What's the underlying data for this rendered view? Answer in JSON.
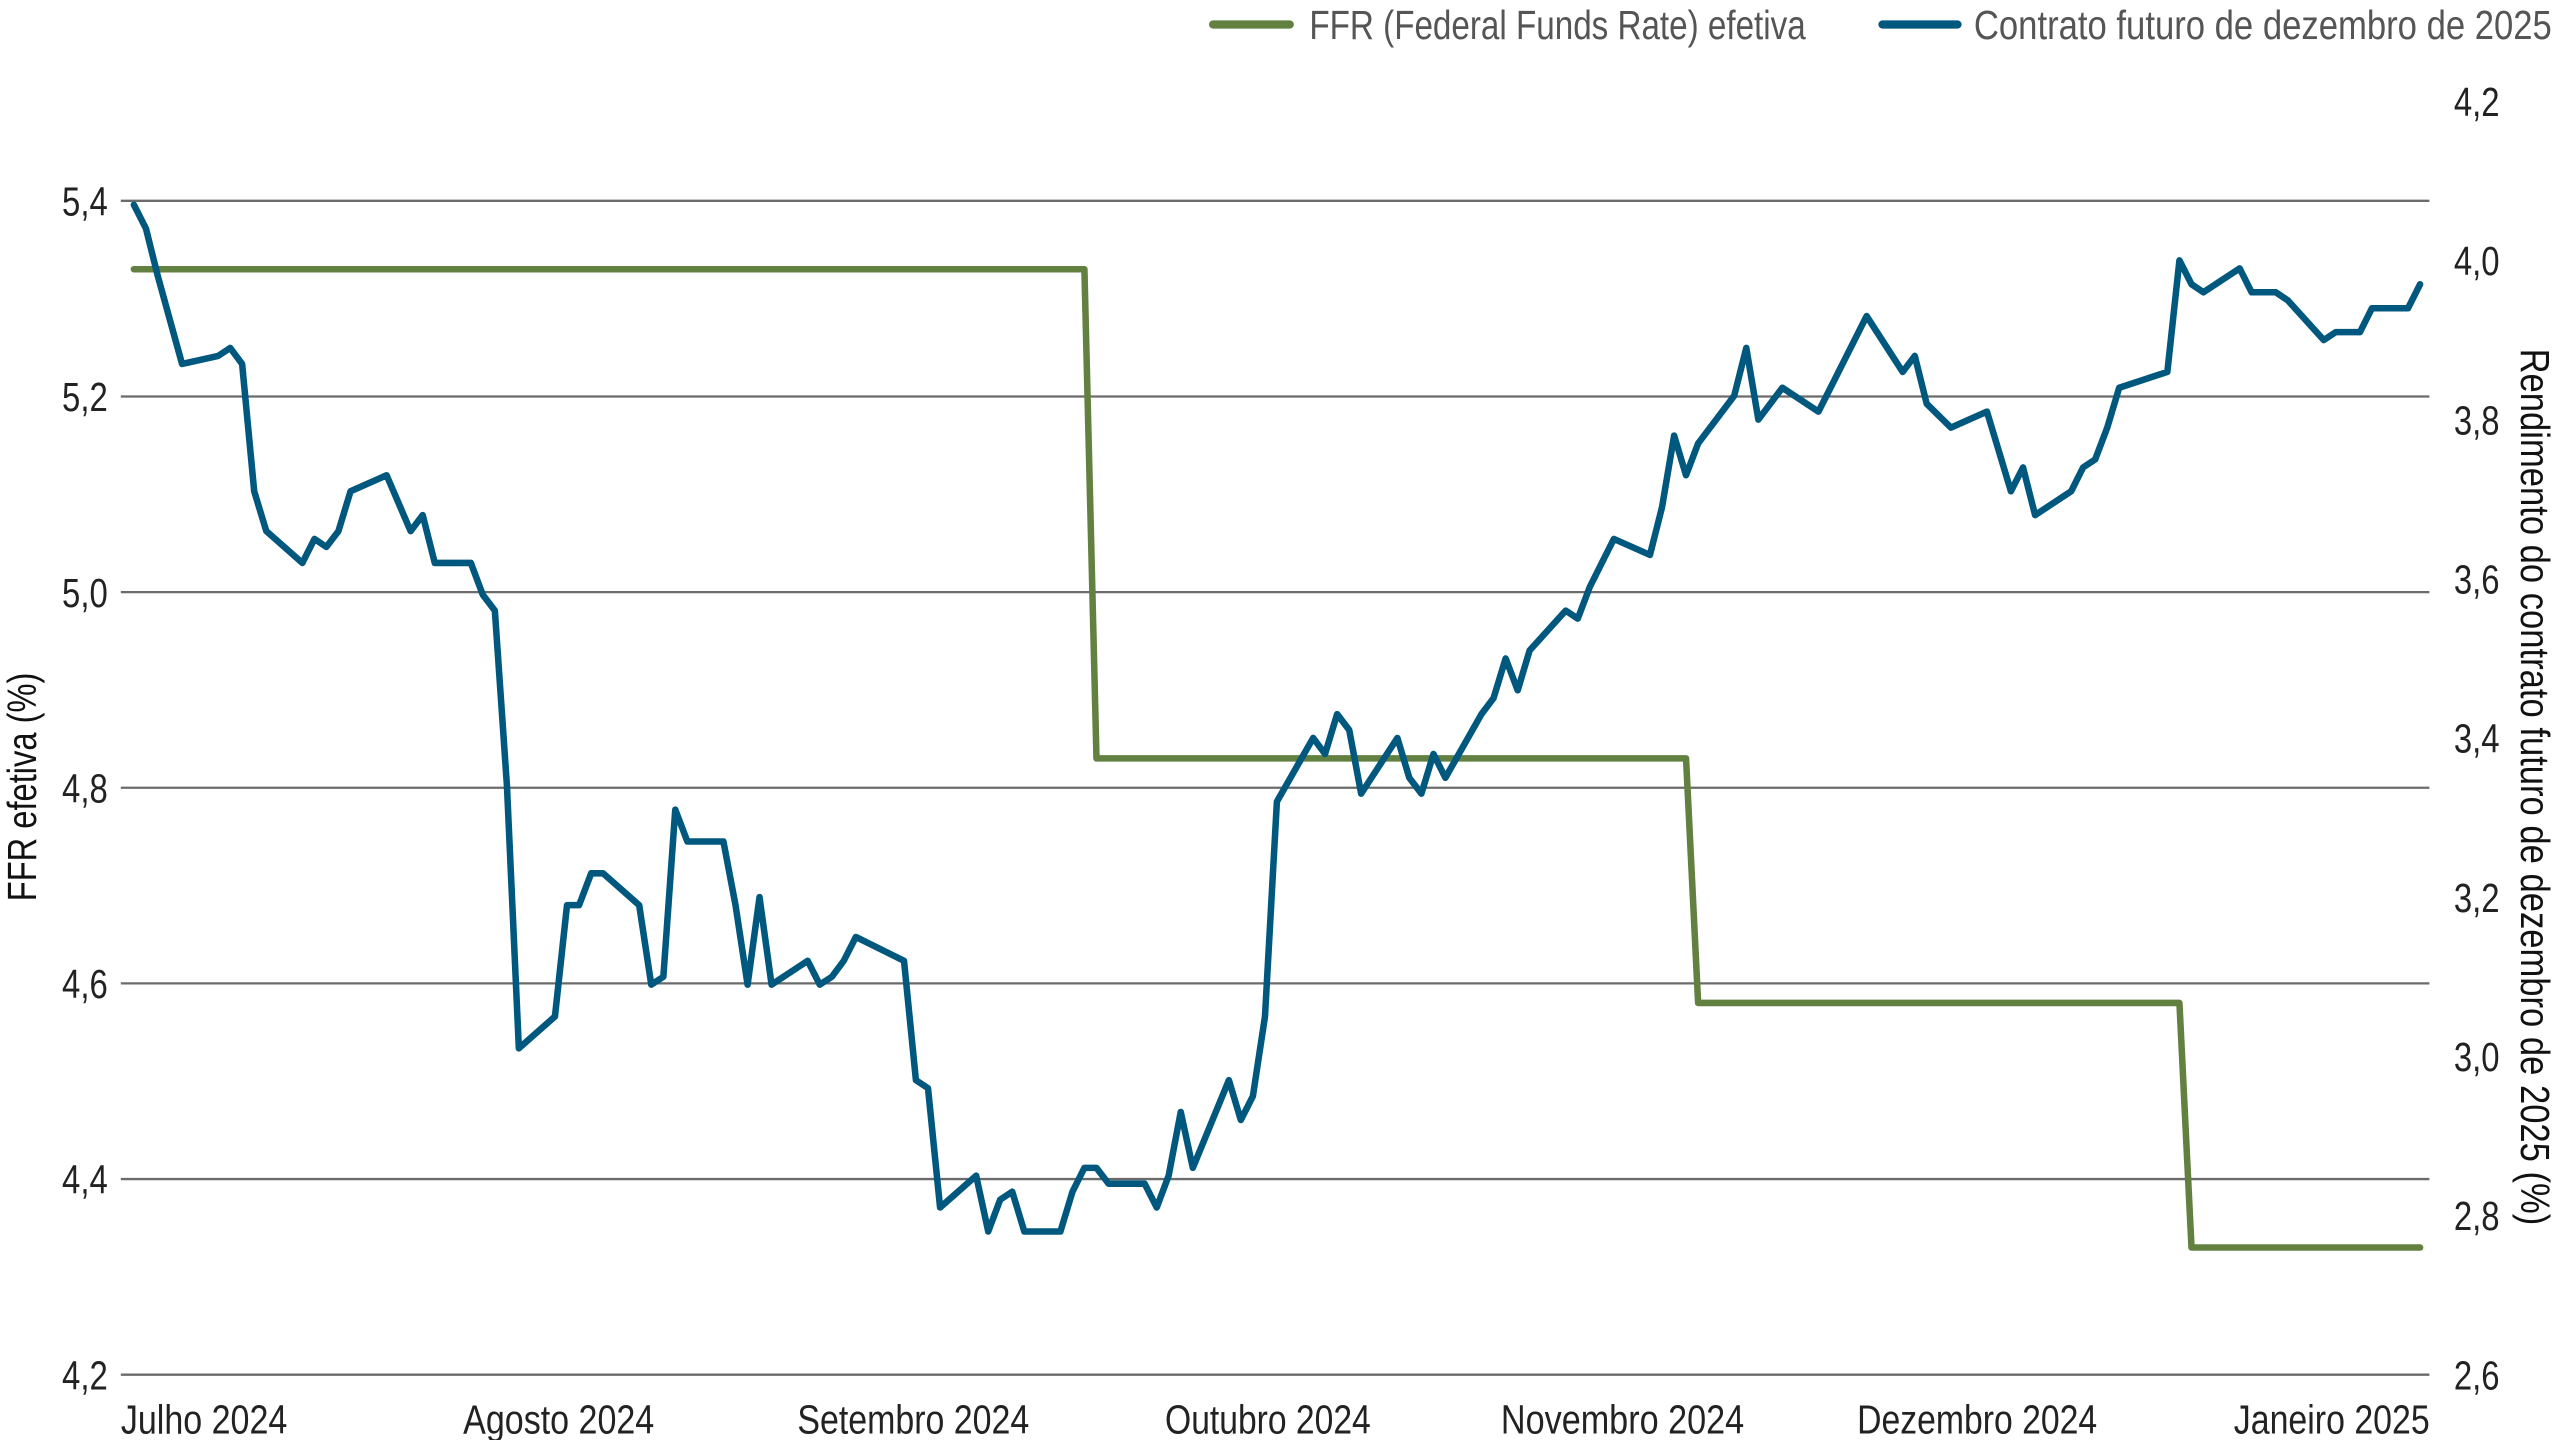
{
  "chart_data": {
    "type": "line",
    "title": "",
    "legend": {
      "placement": "top-right",
      "entries": [
        {
          "name": "FFR (Federal Funds Rate) efetiva",
          "color": "#628040"
        },
        {
          "name": "Contrato futuro de dezembro de 2025",
          "color": "#00587f"
        }
      ]
    },
    "xlabel": "",
    "x_tick_labels": [
      "Julho 2024",
      "Agosto 2024",
      "Setembro 2024",
      "Outubro 2024",
      "Novembro 2024",
      "Dezembro 2024",
      "Janeiro 2025"
    ],
    "xlim": [
      "2024-07-01",
      "2025-01-07"
    ],
    "y_left": {
      "label": "FFR efetiva (%)",
      "lim": [
        4.2,
        5.4
      ],
      "ticks": [
        "4,2",
        "4,4",
        "4,6",
        "4,8",
        "5,0",
        "5,2",
        "5,4"
      ]
    },
    "y_right": {
      "label": "Rendimento do contrato futuro de dezembro de 2025 (%)",
      "lim": [
        2.6,
        4.2
      ],
      "ticks": [
        "2,6",
        "2,8",
        "3,0",
        "3,2",
        "3,4",
        "3,6",
        "3,8",
        "4,0",
        "4,2"
      ]
    },
    "grid": true,
    "series": [
      {
        "name": "FFR (Federal Funds Rate) efetiva",
        "axis": "left",
        "color": "#628040",
        "step": true,
        "points": [
          [
            "2024-07-01",
            5.33
          ],
          [
            "2024-09-18",
            5.33
          ],
          [
            "2024-09-19",
            4.83
          ],
          [
            "2024-11-07",
            4.83
          ],
          [
            "2024-11-08",
            4.58
          ],
          [
            "2024-12-18",
            4.58
          ],
          [
            "2024-12-19",
            4.33
          ],
          [
            "2025-01-07",
            4.33
          ]
        ]
      },
      {
        "name": "Contrato futuro de dezembro de 2025",
        "axis": "right",
        "color": "#00587f",
        "points": [
          [
            "2024-07-01",
            4.07
          ],
          [
            "2024-07-02",
            4.04
          ],
          [
            "2024-07-03",
            3.98
          ],
          [
            "2024-07-05",
            3.87
          ],
          [
            "2024-07-08",
            3.88
          ],
          [
            "2024-07-09",
            3.89
          ],
          [
            "2024-07-10",
            3.87
          ],
          [
            "2024-07-11",
            3.71
          ],
          [
            "2024-07-12",
            3.66
          ],
          [
            "2024-07-15",
            3.62
          ],
          [
            "2024-07-16",
            3.65
          ],
          [
            "2024-07-17",
            3.64
          ],
          [
            "2024-07-18",
            3.66
          ],
          [
            "2024-07-19",
            3.71
          ],
          [
            "2024-07-22",
            3.73
          ],
          [
            "2024-07-24",
            3.66
          ],
          [
            "2024-07-25",
            3.68
          ],
          [
            "2024-07-26",
            3.62
          ],
          [
            "2024-07-29",
            3.62
          ],
          [
            "2024-07-30",
            3.58
          ],
          [
            "2024-07-31",
            3.56
          ],
          [
            "2024-08-01",
            3.34
          ],
          [
            "2024-08-02",
            3.01
          ],
          [
            "2024-08-05",
            3.05
          ],
          [
            "2024-08-06",
            3.19
          ],
          [
            "2024-08-07",
            3.19
          ],
          [
            "2024-08-08",
            3.23
          ],
          [
            "2024-08-09",
            3.23
          ],
          [
            "2024-08-12",
            3.19
          ],
          [
            "2024-08-13",
            3.09
          ],
          [
            "2024-08-14",
            3.1
          ],
          [
            "2024-08-15",
            3.31
          ],
          [
            "2024-08-16",
            3.27
          ],
          [
            "2024-08-19",
            3.27
          ],
          [
            "2024-08-20",
            3.19
          ],
          [
            "2024-08-21",
            3.09
          ],
          [
            "2024-08-22",
            3.2
          ],
          [
            "2024-08-23",
            3.09
          ],
          [
            "2024-08-26",
            3.12
          ],
          [
            "2024-08-27",
            3.09
          ],
          [
            "2024-08-28",
            3.1
          ],
          [
            "2024-08-29",
            3.12
          ],
          [
            "2024-08-30",
            3.15
          ],
          [
            "2024-09-03",
            3.12
          ],
          [
            "2024-09-04",
            2.97
          ],
          [
            "2024-09-05",
            2.96
          ],
          [
            "2024-09-06",
            2.81
          ],
          [
            "2024-09-09",
            2.85
          ],
          [
            "2024-09-10",
            2.78
          ],
          [
            "2024-09-11",
            2.82
          ],
          [
            "2024-09-12",
            2.83
          ],
          [
            "2024-09-13",
            2.78
          ],
          [
            "2024-09-16",
            2.78
          ],
          [
            "2024-09-17",
            2.83
          ],
          [
            "2024-09-18",
            2.86
          ],
          [
            "2024-09-19",
            2.86
          ],
          [
            "2024-09-20",
            2.84
          ],
          [
            "2024-09-23",
            2.84
          ],
          [
            "2024-09-24",
            2.81
          ],
          [
            "2024-09-25",
            2.85
          ],
          [
            "2024-09-26",
            2.93
          ],
          [
            "2024-09-27",
            2.86
          ],
          [
            "2024-09-30",
            2.97
          ],
          [
            "2024-10-01",
            2.92
          ],
          [
            "2024-10-02",
            2.95
          ],
          [
            "2024-10-03",
            3.05
          ],
          [
            "2024-10-04",
            3.32
          ],
          [
            "2024-10-07",
            3.4
          ],
          [
            "2024-10-08",
            3.38
          ],
          [
            "2024-10-09",
            3.43
          ],
          [
            "2024-10-10",
            3.41
          ],
          [
            "2024-10-11",
            3.33
          ],
          [
            "2024-10-14",
            3.4
          ],
          [
            "2024-10-15",
            3.35
          ],
          [
            "2024-10-16",
            3.33
          ],
          [
            "2024-10-17",
            3.38
          ],
          [
            "2024-10-18",
            3.35
          ],
          [
            "2024-10-21",
            3.43
          ],
          [
            "2024-10-22",
            3.45
          ],
          [
            "2024-10-23",
            3.5
          ],
          [
            "2024-10-24",
            3.46
          ],
          [
            "2024-10-25",
            3.51
          ],
          [
            "2024-10-28",
            3.56
          ],
          [
            "2024-10-29",
            3.55
          ],
          [
            "2024-10-30",
            3.59
          ],
          [
            "2024-10-31",
            3.62
          ],
          [
            "2024-11-01",
            3.65
          ],
          [
            "2024-11-04",
            3.63
          ],
          [
            "2024-11-05",
            3.69
          ],
          [
            "2024-11-06",
            3.78
          ],
          [
            "2024-11-07",
            3.73
          ],
          [
            "2024-11-08",
            3.77
          ],
          [
            "2024-11-11",
            3.83
          ],
          [
            "2024-11-12",
            3.89
          ],
          [
            "2024-11-13",
            3.8
          ],
          [
            "2024-11-14",
            3.82
          ],
          [
            "2024-11-15",
            3.84
          ],
          [
            "2024-11-18",
            3.81
          ],
          [
            "2024-11-19",
            3.84
          ],
          [
            "2024-11-22",
            3.93
          ],
          [
            "2024-11-25",
            3.86
          ],
          [
            "2024-11-26",
            3.88
          ],
          [
            "2024-11-27",
            3.82
          ],
          [
            "2024-11-29",
            3.79
          ],
          [
            "2024-12-02",
            3.81
          ],
          [
            "2024-12-04",
            3.71
          ],
          [
            "2024-12-05",
            3.74
          ],
          [
            "2024-12-06",
            3.68
          ],
          [
            "2024-12-09",
            3.71
          ],
          [
            "2024-12-10",
            3.74
          ],
          [
            "2024-12-11",
            3.75
          ],
          [
            "2024-12-12",
            3.79
          ],
          [
            "2024-12-13",
            3.84
          ],
          [
            "2024-12-17",
            3.86
          ],
          [
            "2024-12-18",
            4.0
          ],
          [
            "2024-12-19",
            3.97
          ],
          [
            "2024-12-20",
            3.96
          ],
          [
            "2024-12-23",
            3.99
          ],
          [
            "2024-12-24",
            3.96
          ],
          [
            "2024-12-26",
            3.96
          ],
          [
            "2024-12-27",
            3.95
          ],
          [
            "2024-12-30",
            3.9
          ],
          [
            "2024-12-31",
            3.91
          ],
          [
            "2025-01-02",
            3.91
          ],
          [
            "2025-01-03",
            3.94
          ],
          [
            "2025-01-06",
            3.94
          ],
          [
            "2025-01-07",
            3.97
          ]
        ]
      }
    ]
  }
}
